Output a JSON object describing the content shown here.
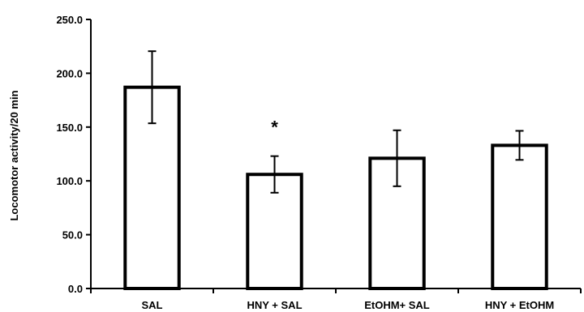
{
  "chart_data": {
    "type": "bar",
    "title": "",
    "xlabel": "",
    "ylabel": "Locomotor activity/20 min",
    "ylim": [
      0,
      250
    ],
    "yticks": [
      0,
      50,
      100,
      150,
      200,
      250
    ],
    "ytick_labels": [
      "0.0",
      "50.0",
      "100.0",
      "150.0",
      "200.0",
      "250.0"
    ],
    "categories": [
      "SAL",
      "HNY + SAL",
      "EtOHM+ SAL",
      "HNY + EtOHM"
    ],
    "values": [
      187,
      106,
      121,
      133
    ],
    "error": [
      33.5,
      17,
      26,
      13.5
    ],
    "annotations": [
      {
        "category": "HNY + SAL",
        "text": "*"
      }
    ],
    "bar_fill": "#ffffff",
    "bar_stroke": "#000000",
    "grid": false,
    "legend": "none"
  }
}
